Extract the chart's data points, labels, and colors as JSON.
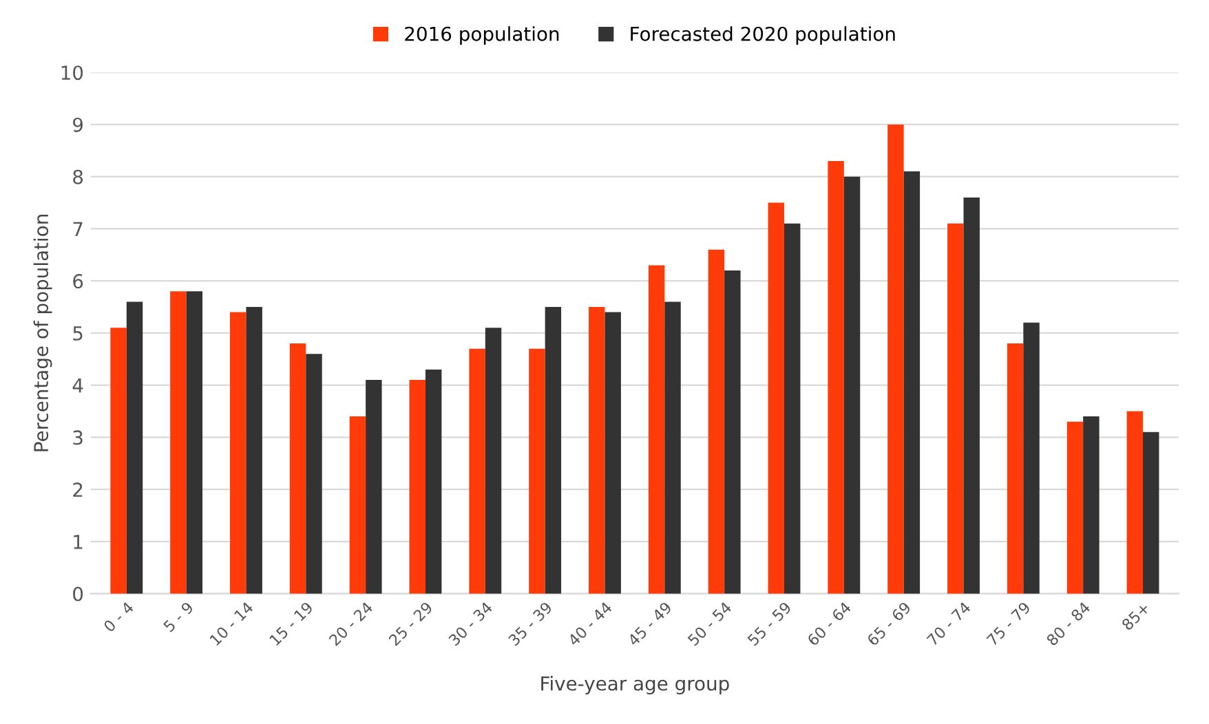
{
  "chart_data": {
    "type": "bar",
    "xlabel": "Five-year age group",
    "ylabel": "Percentage of population",
    "categories": [
      "0 - 4",
      "5 - 9",
      "10 - 14",
      "15 - 19",
      "20 - 24",
      "25 - 29",
      "30 - 34",
      "35 - 39",
      "40 - 44",
      "45 - 49",
      "50 - 54",
      "55 - 59",
      "60 - 64",
      "65 - 69",
      "70 - 74",
      "75 - 79",
      "80 - 84",
      "85+"
    ],
    "series": [
      {
        "name": "2016 population",
        "color": "#ff3b0a",
        "values": [
          5.1,
          5.8,
          5.4,
          4.8,
          3.4,
          4.1,
          4.7,
          4.7,
          5.5,
          6.3,
          6.6,
          7.5,
          8.3,
          9.0,
          7.1,
          4.8,
          3.3,
          3.5
        ]
      },
      {
        "name": "Forecasted 2020 population",
        "color": "#333333",
        "values": [
          5.6,
          5.8,
          5.5,
          4.6,
          4.1,
          4.3,
          5.1,
          5.5,
          5.4,
          5.6,
          6.2,
          7.1,
          8.0,
          8.1,
          7.6,
          5.2,
          3.4,
          3.1
        ]
      }
    ],
    "ylim": [
      0,
      10
    ],
    "yticks": [
      0,
      1,
      2,
      3,
      4,
      5,
      6,
      7,
      8,
      9,
      10
    ],
    "grid": "y",
    "legend": "top"
  }
}
